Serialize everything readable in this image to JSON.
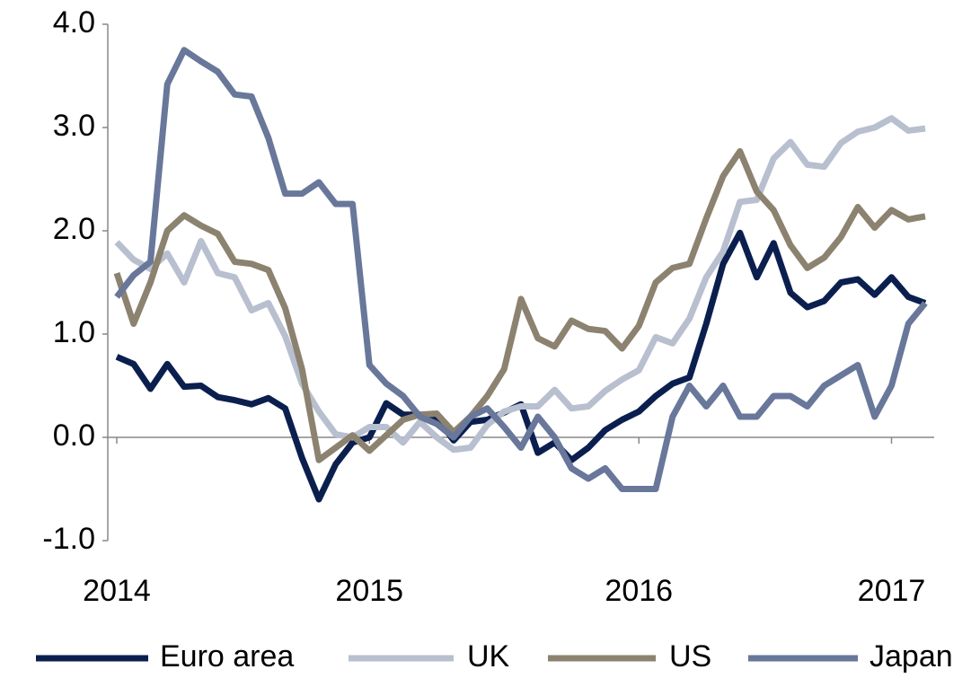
{
  "chart_data": {
    "type": "line",
    "x": [
      0,
      1,
      2,
      3,
      4,
      5,
      6,
      7,
      8,
      9,
      10,
      11,
      12,
      13,
      14,
      15,
      16,
      17,
      18,
      19,
      20,
      21,
      22,
      23,
      24,
      25,
      26,
      27,
      28,
      29,
      30,
      31,
      32,
      33,
      34,
      35,
      36,
      37,
      38,
      39,
      40,
      41,
      42,
      43,
      44,
      45,
      46,
      47,
      48
    ],
    "xlim": [
      0,
      48
    ],
    "xticks": [
      {
        "value": 0,
        "label": "2014"
      },
      {
        "value": 15,
        "label": "2015"
      },
      {
        "value": 31,
        "label": "2016"
      },
      {
        "value": 46,
        "label": "2017"
      }
    ],
    "ylim": [
      -1,
      4
    ],
    "yticks": [
      {
        "value": -1,
        "label": "-1.0"
      },
      {
        "value": 0,
        "label": "0.0"
      },
      {
        "value": 1,
        "label": "1.0"
      },
      {
        "value": 2,
        "label": "2.0"
      },
      {
        "value": 3,
        "label": "3.0"
      },
      {
        "value": 4,
        "label": "4.0"
      }
    ],
    "legend": "bottom",
    "series": [
      {
        "name": "Euro area",
        "color": "#0b1f4f",
        "values": [
          0.78,
          0.71,
          0.47,
          0.71,
          0.49,
          0.5,
          0.39,
          0.36,
          0.32,
          0.38,
          0.28,
          -0.2,
          -0.6,
          -0.26,
          -0.05,
          0.0,
          0.33,
          0.22,
          0.22,
          0.19,
          -0.03,
          0.15,
          0.17,
          0.24,
          0.32,
          -0.15,
          -0.05,
          -0.22,
          -0.1,
          0.07,
          0.17,
          0.25,
          0.4,
          0.52,
          0.58,
          1.1,
          1.68,
          1.98,
          1.55,
          1.88,
          1.4,
          1.26,
          1.32,
          1.5,
          1.53,
          1.38,
          1.55,
          1.36,
          1.3
        ]
      },
      {
        "name": "UK",
        "color": "#b8bfcf",
        "values": [
          1.89,
          1.72,
          1.63,
          1.78,
          1.5,
          1.9,
          1.59,
          1.55,
          1.23,
          1.3,
          0.98,
          0.52,
          0.25,
          0.03,
          0.0,
          0.1,
          0.1,
          -0.05,
          0.15,
          0.0,
          -0.12,
          -0.1,
          0.12,
          0.25,
          0.3,
          0.3,
          0.46,
          0.28,
          0.3,
          0.45,
          0.56,
          0.65,
          0.97,
          0.91,
          1.15,
          1.55,
          1.8,
          2.28,
          2.3,
          2.7,
          2.86,
          2.64,
          2.62,
          2.85,
          2.96,
          3.0,
          3.09,
          2.97,
          2.99
        ]
      },
      {
        "name": "US",
        "color": "#8c8270",
        "values": [
          1.59,
          1.1,
          1.5,
          2.0,
          2.15,
          2.05,
          1.97,
          1.7,
          1.68,
          1.62,
          1.25,
          0.66,
          -0.22,
          -0.1,
          0.02,
          -0.13,
          0.02,
          0.17,
          0.22,
          0.23,
          0.05,
          0.2,
          0.4,
          0.66,
          1.34,
          0.96,
          0.88,
          1.13,
          1.05,
          1.03,
          0.86,
          1.08,
          1.5,
          1.64,
          1.68,
          2.12,
          2.53,
          2.77,
          2.38,
          2.2,
          1.86,
          1.64,
          1.74,
          1.94,
          2.23,
          2.03,
          2.2,
          2.11,
          2.14
        ]
      },
      {
        "name": "Japan",
        "color": "#68779a",
        "values": [
          1.36,
          1.57,
          1.7,
          3.42,
          3.75,
          3.64,
          3.54,
          3.32,
          3.3,
          2.9,
          2.36,
          2.36,
          2.47,
          2.26,
          2.26,
          0.7,
          0.52,
          0.4,
          0.2,
          0.13,
          0.0,
          0.2,
          0.28,
          0.1,
          -0.1,
          0.2,
          0.0,
          -0.3,
          -0.4,
          -0.3,
          -0.5,
          -0.5,
          -0.5,
          0.2,
          0.5,
          0.3,
          0.5,
          0.2,
          0.2,
          0.4,
          0.4,
          0.3,
          0.5,
          0.6,
          0.7,
          0.2,
          0.5,
          1.1,
          1.3
        ]
      }
    ]
  }
}
